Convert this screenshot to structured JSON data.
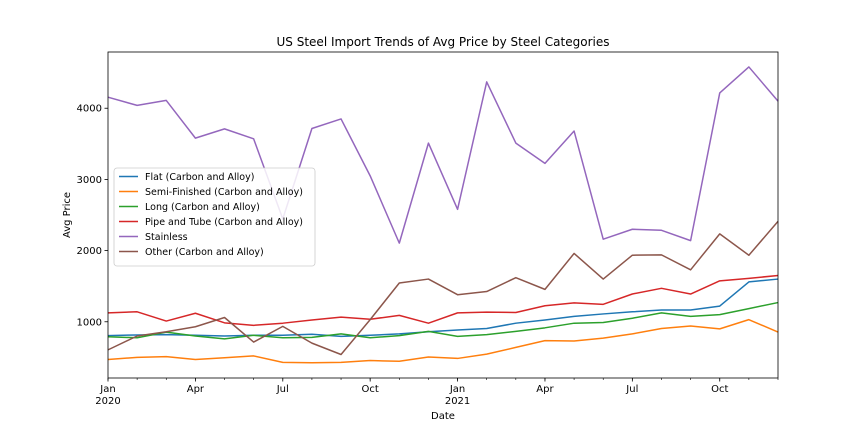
{
  "chart_data": {
    "type": "line",
    "title": "US Steel Import Trends of Avg Price by Steel Categories",
    "xlabel": "Date",
    "ylabel": "Avg Price",
    "x": [
      "2020-01",
      "2020-02",
      "2020-03",
      "2020-04",
      "2020-05",
      "2020-06",
      "2020-07",
      "2020-08",
      "2020-09",
      "2020-10",
      "2020-11",
      "2020-12",
      "2021-01",
      "2021-02",
      "2021-03",
      "2021-04",
      "2021-05",
      "2021-06",
      "2021-07",
      "2021-08",
      "2021-09",
      "2021-10",
      "2021-11",
      "2021-12"
    ],
    "xlim": [
      "2020-01",
      "2021-12"
    ],
    "ylim": [
      210,
      4790
    ],
    "yticks": [
      1000,
      2000,
      3000,
      4000
    ],
    "yticklabels": [
      "1000",
      "2000",
      "3000",
      "4000"
    ],
    "xticks": [
      {
        "at": "2020-01",
        "label": "Jan",
        "sublabel": "2020"
      },
      {
        "at": "2020-04",
        "label": "Apr",
        "sublabel": ""
      },
      {
        "at": "2020-07",
        "label": "Jul",
        "sublabel": ""
      },
      {
        "at": "2020-10",
        "label": "Oct",
        "sublabel": ""
      },
      {
        "at": "2021-01",
        "label": "Jan",
        "sublabel": "2021"
      },
      {
        "at": "2021-04",
        "label": "Apr",
        "sublabel": ""
      },
      {
        "at": "2021-07",
        "label": "Jul",
        "sublabel": ""
      },
      {
        "at": "2021-10",
        "label": "Oct",
        "sublabel": ""
      }
    ],
    "grid": false,
    "legend_position": "center-left",
    "series": [
      {
        "name": "Flat (Carbon and Alloy)",
        "color": "#1f77b4",
        "values": [
          805,
          815,
          820,
          810,
          800,
          810,
          810,
          825,
          795,
          810,
          830,
          860,
          885,
          905,
          980,
          1025,
          1075,
          1110,
          1140,
          1165,
          1165,
          1220,
          1560,
          1600
        ]
      },
      {
        "name": "Semi-Finished (Carbon and Alloy)",
        "color": "#ff7f0e",
        "values": [
          470,
          500,
          510,
          470,
          495,
          520,
          430,
          425,
          430,
          455,
          445,
          505,
          485,
          545,
          640,
          735,
          730,
          770,
          830,
          905,
          940,
          900,
          1030,
          855
        ]
      },
      {
        "name": "Long (Carbon and Alloy)",
        "color": "#2ca02c",
        "values": [
          790,
          775,
          855,
          800,
          760,
          810,
          775,
          780,
          830,
          775,
          805,
          865,
          795,
          820,
          865,
          915,
          980,
          990,
          1050,
          1125,
          1075,
          1100,
          1185,
          1270
        ]
      },
      {
        "name": "Pipe and Tube (Carbon and Alloy)",
        "color": "#d62728",
        "values": [
          1125,
          1140,
          1010,
          1120,
          985,
          950,
          980,
          1025,
          1065,
          1035,
          1090,
          980,
          1125,
          1135,
          1130,
          1225,
          1265,
          1245,
          1390,
          1470,
          1390,
          1575,
          1610,
          1650
        ]
      },
      {
        "name": "Stainless",
        "color": "#9467bd",
        "values": [
          4155,
          4040,
          4110,
          3580,
          3710,
          3570,
          2445,
          3715,
          3850,
          3050,
          2105,
          3510,
          2580,
          4370,
          3510,
          3225,
          3680,
          2160,
          2300,
          2285,
          2140,
          4215,
          4580,
          4100
        ]
      },
      {
        "name": "Other (Carbon and Alloy)",
        "color": "#8c564b",
        "values": [
          605,
          800,
          860,
          930,
          1060,
          715,
          935,
          700,
          540,
          1030,
          1545,
          1600,
          1380,
          1425,
          1620,
          1455,
          1960,
          1600,
          1935,
          1940,
          1730,
          2235,
          1935,
          2410
        ]
      }
    ]
  }
}
